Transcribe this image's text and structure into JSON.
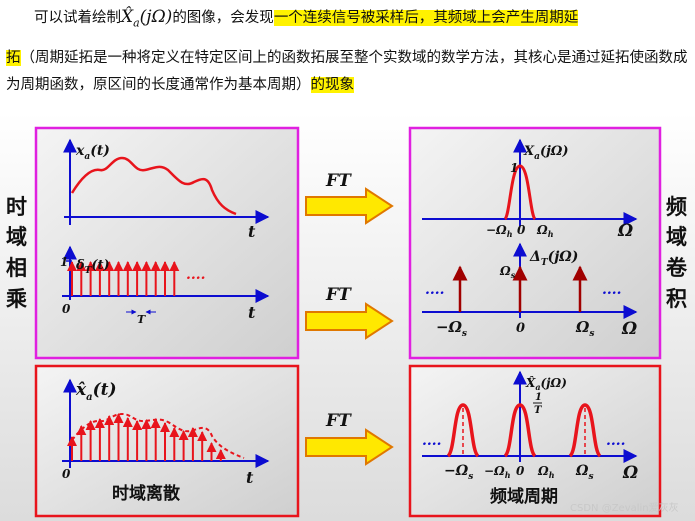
{
  "text": {
    "p1_a": "可以试着绘制",
    "p1_sym": "X̂",
    "p1_sub": "a",
    "p1_arg": "(jΩ)",
    "p1_b": "的图像，会发现",
    "p1_hl": "一个连续信号被采样后，其频域上会产生周期延",
    "p2_hl_start": "拓",
    "p2_body": "（周期延拓是一种将定义在特定区间上的函数拓展至整个实数域的数学方法，其核心是通过延拓使函数成为周期函数，原区间的长度通常作为基本周期）",
    "p2_hl_end": "的现象"
  },
  "diagram": {
    "side_left": [
      "时",
      "域",
      "相",
      "乘"
    ],
    "side_right": [
      "频",
      "域",
      "卷",
      "积"
    ],
    "arrow_label": "FT",
    "t": "t",
    "omega": "Ω",
    "zero": "0",
    "one": "1",
    "ellipsis": "....",
    "panel1": {
      "func": "x",
      "sub": "a",
      "arg": "(t)"
    },
    "panel2": {
      "func": "δ",
      "sub": "T",
      "arg": "(t)",
      "period": "T"
    },
    "panel3": {
      "func": "x̂",
      "sub": "a",
      "arg": "(t)",
      "caption": "时域离散"
    },
    "panel4": {
      "func": "X",
      "sub": "a",
      "arg": "(jΩ)",
      "neg_h": "−Ω",
      "pos_h": "Ω",
      "h": "h"
    },
    "panel5": {
      "func": "Δ",
      "sub": "T",
      "arg": "(jΩ)",
      "neg_s": "−Ω",
      "pos_s": "Ω",
      "s": "s"
    },
    "panel6": {
      "func": "X̂",
      "sub": "a",
      "arg": "(jΩ)",
      "one_over_t_num": "1",
      "one_over_t_den": "T",
      "caption": "频域周期"
    }
  },
  "watermark": "CSDN @Zevalin爱灰灰",
  "colors": {
    "highlight": "#fff200",
    "signal": "#e8141c",
    "axis": "#0c0cd0",
    "frame": "#e020e0",
    "arrow_fill": "#ffe800",
    "arrow_stroke": "#e07800"
  }
}
